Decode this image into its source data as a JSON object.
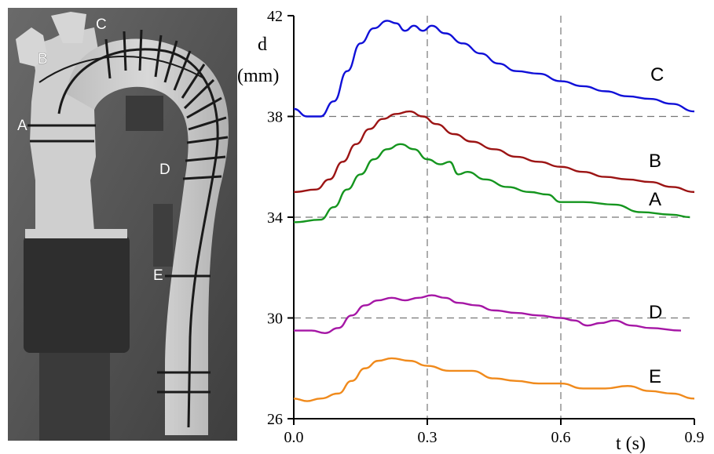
{
  "photo": {
    "labels": [
      "A",
      "B",
      "C",
      "D",
      "E"
    ]
  },
  "chart_data": {
    "type": "line",
    "xlabel": "t (s)",
    "ylabel_line1": "d",
    "ylabel_line2": "(mm)",
    "xlim": [
      0,
      0.9
    ],
    "ylim": [
      26,
      42
    ],
    "xticks": [
      "0.0",
      "0.3",
      "0.6",
      "0.9"
    ],
    "yticks": [
      "26",
      "30",
      "34",
      "38",
      "42"
    ],
    "grid": "dashed at x=0.3, 0.6 and y=30, 34, 38",
    "series": [
      {
        "name": "C",
        "color": "#1010d8",
        "points": [
          [
            0,
            38.3
          ],
          [
            0.03,
            38.0
          ],
          [
            0.06,
            38.0
          ],
          [
            0.09,
            38.6
          ],
          [
            0.12,
            39.8
          ],
          [
            0.15,
            40.9
          ],
          [
            0.18,
            41.5
          ],
          [
            0.21,
            41.8
          ],
          [
            0.23,
            41.7
          ],
          [
            0.25,
            41.4
          ],
          [
            0.27,
            41.6
          ],
          [
            0.29,
            41.4
          ],
          [
            0.31,
            41.6
          ],
          [
            0.34,
            41.3
          ],
          [
            0.38,
            40.9
          ],
          [
            0.42,
            40.5
          ],
          [
            0.46,
            40.1
          ],
          [
            0.5,
            39.8
          ],
          [
            0.55,
            39.7
          ],
          [
            0.6,
            39.4
          ],
          [
            0.65,
            39.2
          ],
          [
            0.7,
            39.0
          ],
          [
            0.75,
            38.8
          ],
          [
            0.8,
            38.7
          ],
          [
            0.85,
            38.5
          ],
          [
            0.9,
            38.2
          ]
        ]
      },
      {
        "name": "B",
        "color": "#9c1414",
        "points": [
          [
            0,
            35.0
          ],
          [
            0.05,
            35.1
          ],
          [
            0.08,
            35.5
          ],
          [
            0.11,
            36.2
          ],
          [
            0.14,
            36.9
          ],
          [
            0.17,
            37.5
          ],
          [
            0.2,
            37.9
          ],
          [
            0.23,
            38.1
          ],
          [
            0.26,
            38.2
          ],
          [
            0.29,
            38.0
          ],
          [
            0.32,
            37.7
          ],
          [
            0.36,
            37.3
          ],
          [
            0.4,
            37.0
          ],
          [
            0.45,
            36.7
          ],
          [
            0.5,
            36.4
          ],
          [
            0.55,
            36.2
          ],
          [
            0.6,
            36.0
          ],
          [
            0.65,
            35.8
          ],
          [
            0.7,
            35.6
          ],
          [
            0.75,
            35.5
          ],
          [
            0.8,
            35.4
          ],
          [
            0.85,
            35.2
          ],
          [
            0.9,
            35.0
          ]
        ]
      },
      {
        "name": "A",
        "color": "#14951e",
        "points": [
          [
            0,
            33.8
          ],
          [
            0.06,
            33.9
          ],
          [
            0.09,
            34.4
          ],
          [
            0.12,
            35.1
          ],
          [
            0.15,
            35.7
          ],
          [
            0.18,
            36.3
          ],
          [
            0.21,
            36.7
          ],
          [
            0.24,
            36.9
          ],
          [
            0.27,
            36.7
          ],
          [
            0.3,
            36.3
          ],
          [
            0.33,
            36.1
          ],
          [
            0.35,
            36.2
          ],
          [
            0.37,
            35.7
          ],
          [
            0.39,
            35.8
          ],
          [
            0.43,
            35.5
          ],
          [
            0.48,
            35.2
          ],
          [
            0.53,
            35.0
          ],
          [
            0.57,
            34.9
          ],
          [
            0.6,
            34.6
          ],
          [
            0.65,
            34.6
          ],
          [
            0.72,
            34.5
          ],
          [
            0.78,
            34.2
          ],
          [
            0.85,
            34.1
          ],
          [
            0.89,
            34.0
          ]
        ]
      },
      {
        "name": "D",
        "color": "#a516a5",
        "points": [
          [
            0,
            29.5
          ],
          [
            0.04,
            29.5
          ],
          [
            0.07,
            29.4
          ],
          [
            0.1,
            29.6
          ],
          [
            0.13,
            30.1
          ],
          [
            0.16,
            30.5
          ],
          [
            0.19,
            30.7
          ],
          [
            0.22,
            30.8
          ],
          [
            0.25,
            30.7
          ],
          [
            0.28,
            30.8
          ],
          [
            0.31,
            30.9
          ],
          [
            0.34,
            30.8
          ],
          [
            0.37,
            30.6
          ],
          [
            0.41,
            30.5
          ],
          [
            0.45,
            30.3
          ],
          [
            0.5,
            30.2
          ],
          [
            0.55,
            30.1
          ],
          [
            0.6,
            30.0
          ],
          [
            0.63,
            29.9
          ],
          [
            0.66,
            29.7
          ],
          [
            0.69,
            29.8
          ],
          [
            0.72,
            29.9
          ],
          [
            0.76,
            29.7
          ],
          [
            0.8,
            29.6
          ],
          [
            0.87,
            29.5
          ]
        ]
      },
      {
        "name": "E",
        "color": "#f08a1c",
        "points": [
          [
            0,
            26.8
          ],
          [
            0.03,
            26.7
          ],
          [
            0.06,
            26.8
          ],
          [
            0.1,
            27.0
          ],
          [
            0.13,
            27.5
          ],
          [
            0.16,
            28.0
          ],
          [
            0.19,
            28.3
          ],
          [
            0.22,
            28.4
          ],
          [
            0.26,
            28.3
          ],
          [
            0.3,
            28.1
          ],
          [
            0.35,
            27.9
          ],
          [
            0.4,
            27.9
          ],
          [
            0.45,
            27.6
          ],
          [
            0.5,
            27.5
          ],
          [
            0.55,
            27.4
          ],
          [
            0.6,
            27.4
          ],
          [
            0.65,
            27.2
          ],
          [
            0.7,
            27.2
          ],
          [
            0.75,
            27.3
          ],
          [
            0.8,
            27.1
          ],
          [
            0.85,
            27.0
          ],
          [
            0.9,
            26.8
          ]
        ]
      }
    ]
  }
}
